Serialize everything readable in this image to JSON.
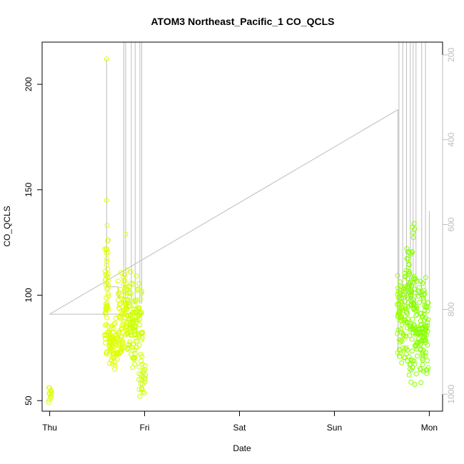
{
  "chart_data": {
    "type": "scatter",
    "title": "ATOM3 Northeast_Pacific_1 CO_QCLS",
    "xlabel": "Date",
    "ylabel": "CO_QCLS",
    "x_ticks": [
      "Thu",
      "Fri",
      "Sat",
      "Sun",
      "Mon"
    ],
    "x_range_days": [
      -0.08,
      4.14
    ],
    "ylim": [
      45,
      220
    ],
    "y_ticks": [
      50,
      100,
      150,
      200
    ],
    "y2_ticks": [
      200,
      400,
      600,
      800,
      1000
    ],
    "y2lim": [
      1040,
      170
    ],
    "grid": false,
    "colors": {
      "points_early": "#ddff00",
      "points_late": "#88ff00",
      "trace": "#bdbdbd"
    },
    "clusters": [
      {
        "x_start": -0.01,
        "x_end": 0.02,
        "y_min": 49,
        "y_max": 57,
        "n": 12,
        "color": "#ddff00"
      },
      {
        "x_start": 0.58,
        "x_end": 0.62,
        "y_min": 64,
        "y_max": 138,
        "n": 55,
        "color": "#ddff00"
      },
      {
        "x_start": 0.62,
        "x_end": 0.72,
        "y_min": 64,
        "y_max": 90,
        "n": 70,
        "color": "#ddff00"
      },
      {
        "x_start": 0.72,
        "x_end": 0.82,
        "y_min": 62,
        "y_max": 116,
        "n": 80,
        "color": "#ddff00"
      },
      {
        "x_start": 0.82,
        "x_end": 0.98,
        "y_min": 60,
        "y_max": 116,
        "n": 110,
        "color": "#ccff00"
      },
      {
        "x_start": 0.94,
        "x_end": 1.01,
        "y_min": 48,
        "y_max": 70,
        "n": 25,
        "color": "#ccff00"
      },
      {
        "x_start": 3.66,
        "x_end": 3.76,
        "y_min": 64,
        "y_max": 112,
        "n": 80,
        "color": "#99ff00"
      },
      {
        "x_start": 3.76,
        "x_end": 3.86,
        "y_min": 56,
        "y_max": 135,
        "n": 100,
        "color": "#88ff00"
      },
      {
        "x_start": 3.86,
        "x_end": 3.99,
        "y_min": 56,
        "y_max": 110,
        "n": 110,
        "color": "#88ff00"
      }
    ],
    "outliers": [
      {
        "x": 0.6,
        "y": 212
      },
      {
        "x": 0.6,
        "y": 145
      },
      {
        "x": 0.8,
        "y": 129
      },
      {
        "x": 0.76,
        "y": 100
      },
      {
        "x": 3.84,
        "y": 134
      }
    ],
    "trace": {
      "line_points": [
        [
          0.0,
          91
        ],
        [
          3.67,
          188
        ]
      ],
      "flat_segment": [
        [
          0.0,
          91
        ],
        [
          0.99,
          91
        ]
      ],
      "steps": [
        [
          0.6,
          104
        ],
        [
          0.72,
          104
        ],
        [
          0.72,
          99
        ],
        [
          0.8,
          99
        ]
      ],
      "spikes_early": [
        0.78,
        0.8,
        0.86,
        0.9,
        0.95,
        0.97
      ],
      "spikes_late": [
        3.68,
        3.72,
        3.76,
        3.8,
        3.83,
        3.86,
        3.92,
        3.96
      ]
    }
  }
}
